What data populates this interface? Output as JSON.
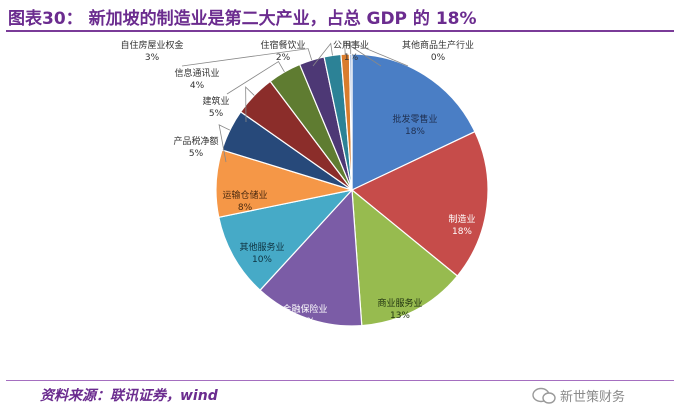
{
  "header": {
    "title": "图表30： 新加坡的制造业是第二大产业，占总 GDP 的 18%"
  },
  "footer": {
    "source": "资料来源：联讯证券，wind",
    "watermark": "新世策财务"
  },
  "chart_data": {
    "type": "pie",
    "title": "",
    "slices": [
      {
        "label": "批发零售业",
        "value": 18,
        "display": "18%",
        "color": "#4a7ec5"
      },
      {
        "label": "制造业",
        "value": 18,
        "display": "18%",
        "color": "#c64c4a"
      },
      {
        "label": "商业服务业",
        "value": 13,
        "display": "13%",
        "color": "#97bb4f"
      },
      {
        "label": "金融保险业",
        "value": 13,
        "display": "13%",
        "color": "#7b5ca6"
      },
      {
        "label": "其他服务业",
        "value": 10,
        "display": "10%",
        "color": "#46aac7"
      },
      {
        "label": "运输仓储业",
        "value": 8,
        "display": "8%",
        "color": "#f59747"
      },
      {
        "label": "产品税净额",
        "value": 5,
        "display": "5%",
        "color": "#27497a"
      },
      {
        "label": "建筑业",
        "value": 5,
        "display": "5%",
        "color": "#8b2d2a"
      },
      {
        "label": "信息通讯业",
        "value": 4,
        "display": "4%",
        "color": "#5f7c31"
      },
      {
        "label": "自住房屋业权金",
        "value": 3,
        "display": "3%",
        "color": "#4d3875"
      },
      {
        "label": "住宿餐饮业",
        "value": 2,
        "display": "2%",
        "color": "#2c8296"
      },
      {
        "label": "公用事业",
        "value": 1,
        "display": "1%",
        "color": "#d97c2c"
      },
      {
        "label": "其他商品生产行业",
        "value": 0.3,
        "display": "0%",
        "color": "#a6bddf"
      }
    ]
  }
}
